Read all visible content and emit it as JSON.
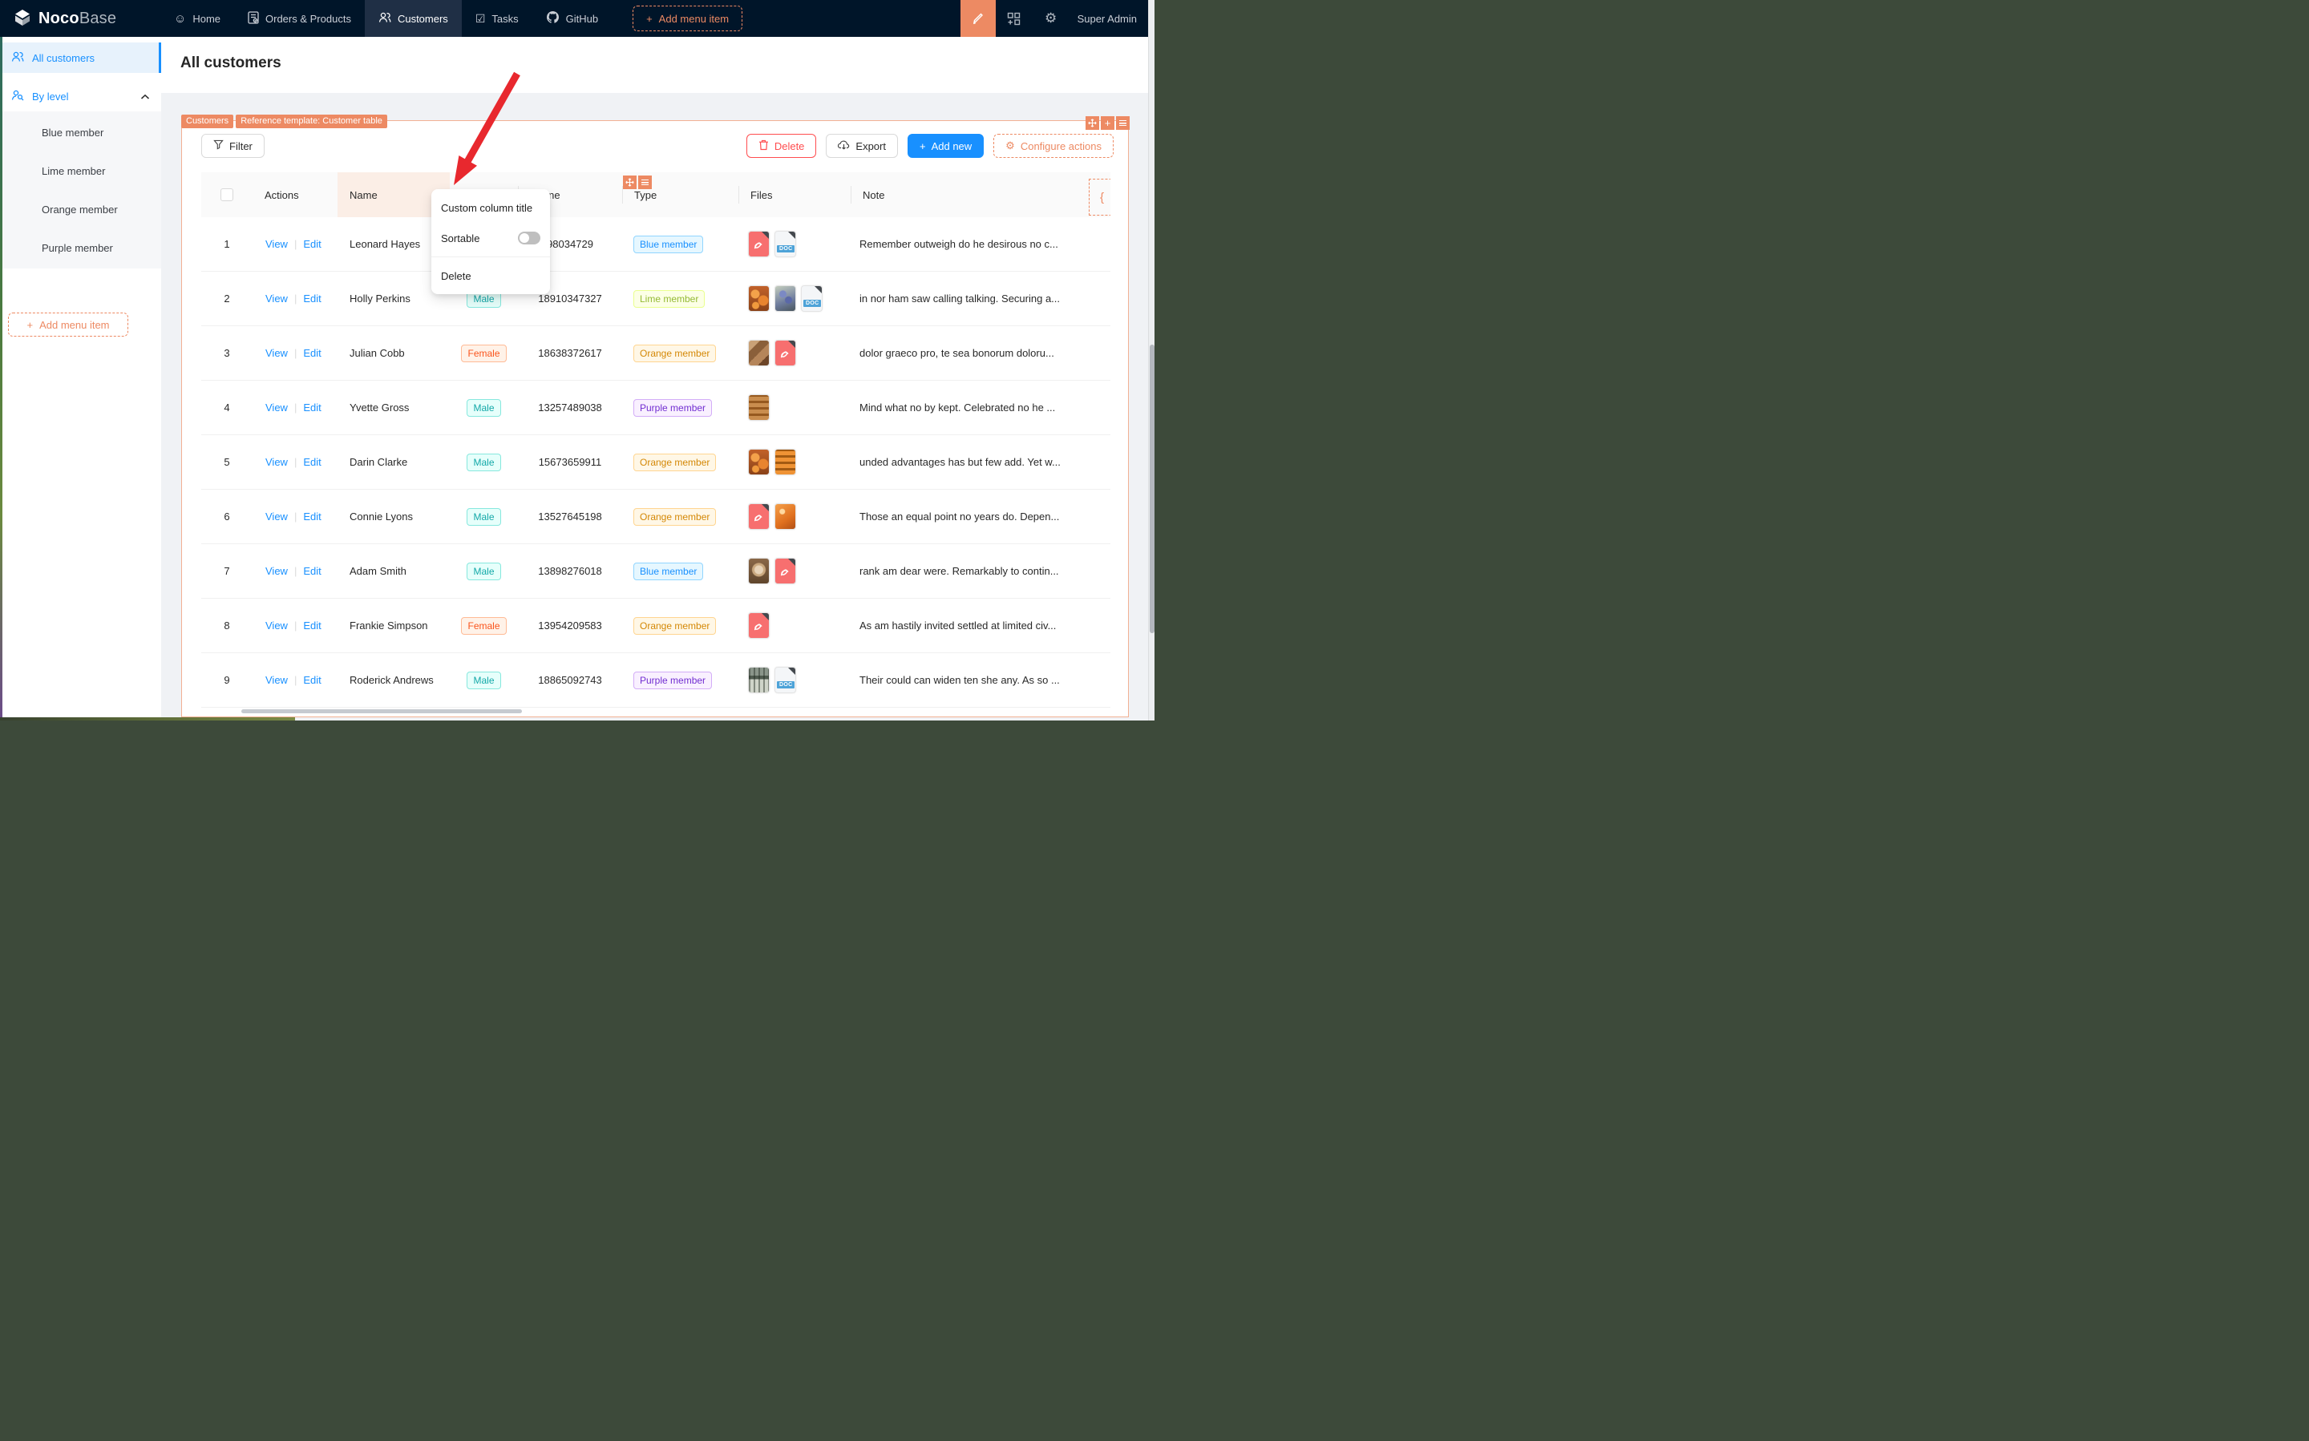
{
  "nav": {
    "logo": {
      "bold": "Noco",
      "light": "Base"
    },
    "items": [
      {
        "label": "Home"
      },
      {
        "label": "Orders & Products"
      },
      {
        "label": "Customers",
        "active": true
      },
      {
        "label": "Tasks"
      },
      {
        "label": "GitHub"
      }
    ],
    "add_menu_item": "Add menu item",
    "user": "Super Admin"
  },
  "sidebar": {
    "all_customers": "All customers",
    "by_level": "By level",
    "levels": [
      {
        "label": "Blue member"
      },
      {
        "label": "Lime member"
      },
      {
        "label": "Orange member"
      },
      {
        "label": "Purple member"
      }
    ],
    "add_menu_item": "Add menu item"
  },
  "page": {
    "title": "All customers"
  },
  "block": {
    "badges": {
      "collection": "Customers",
      "template": "Reference template: Customer table"
    },
    "toolbar": {
      "filter": "Filter",
      "delete": "Delete",
      "export": "Export",
      "add_new": "Add new",
      "configure_actions": "Configure actions"
    }
  },
  "columns": {
    "actions": "Actions",
    "name": "Name",
    "phone": "Phone",
    "type": "Type",
    "files": "Files",
    "note": "Note"
  },
  "dropdown": {
    "custom_column_title": "Custom column title",
    "sortable": "Sortable",
    "sortable_state": "off",
    "delete": "Delete"
  },
  "actions_separator": "|",
  "icons": {
    "plus": "+",
    "gear": "⚙",
    "smiley": "☺",
    "task": "☑",
    "brace": "{"
  },
  "colors": {
    "nav_bg": "#001529",
    "accent_orange": "#ED8A63",
    "primary_blue": "#1890ff",
    "danger_red": "#ff4d4f",
    "gender": {
      "Male": {
        "bg": "#e6fffb",
        "border": "#87e8de",
        "text": "#13a8a8"
      },
      "Female": {
        "bg": "#fff2e8",
        "border": "#ffbb96",
        "text": "#fa541c"
      }
    },
    "member": {
      "Blue member": {
        "bg": "#e6f7ff",
        "border": "#91d5ff",
        "text": "#1890ff"
      },
      "Lime member": {
        "bg": "#fcffe6",
        "border": "#eaff8f",
        "text": "#94ba33"
      },
      "Orange member": {
        "bg": "#fff7e6",
        "border": "#ffd591",
        "text": "#d48806"
      },
      "Purple member": {
        "bg": "#f9f0ff",
        "border": "#d3adf7",
        "text": "#722ed1"
      }
    }
  },
  "rows": [
    {
      "index": 1,
      "view": "View",
      "edit": "Edit",
      "name": "Leonard Hayes",
      "gender": "",
      "phone": "98034729",
      "type": "Blue member",
      "files": [
        "pdf",
        "doc"
      ],
      "note": "Remember outweigh do he desirous no c..."
    },
    {
      "index": 2,
      "view": "View",
      "edit": "Edit",
      "name": "Holly Perkins",
      "gender": "Male",
      "phone": "18910347327",
      "type": "Lime member",
      "files": [
        "img-orange",
        "img-berries",
        "doc"
      ],
      "note": "in nor ham saw calling talking. Securing a..."
    },
    {
      "index": 3,
      "view": "View",
      "edit": "Edit",
      "name": "Julian Cobb",
      "gender": "Female",
      "phone": "18638372617",
      "type": "Orange member",
      "files": [
        "img-food",
        "pdf"
      ],
      "note": "dolor graeco pro, te sea bonorum doloru..."
    },
    {
      "index": 4,
      "view": "View",
      "edit": "Edit",
      "name": "Yvette Gross",
      "gender": "Male",
      "phone": "13257489038",
      "type": "Purple member",
      "files": [
        "img-buns"
      ],
      "note": "Mind what no by kept. Celebrated no he ..."
    },
    {
      "index": 5,
      "view": "View",
      "edit": "Edit",
      "name": "Darin Clarke",
      "gender": "Male",
      "phone": "15673659911",
      "type": "Orange member",
      "files": [
        "img-orange",
        "img-rounds"
      ],
      "note": "unded advantages has but few add. Yet w..."
    },
    {
      "index": 6,
      "view": "View",
      "edit": "Edit",
      "name": "Connie Lyons",
      "gender": "Male",
      "phone": "13527645198",
      "type": "Orange member",
      "files": [
        "pdf",
        "img-orangefruit"
      ],
      "note": "Those an equal point no years do. Depen..."
    },
    {
      "index": 7,
      "view": "View",
      "edit": "Edit",
      "name": "Adam Smith",
      "gender": "Male",
      "phone": "13898276018",
      "type": "Blue member",
      "files": [
        "img-coffee",
        "pdf"
      ],
      "note": "rank am dear were. Remarkably to contin..."
    },
    {
      "index": 8,
      "view": "View",
      "edit": "Edit",
      "name": "Frankie Simpson",
      "gender": "Female",
      "phone": "13954209583",
      "type": "Orange member",
      "files": [
        "pdf"
      ],
      "note": "As am hastily invited settled at limited civ..."
    },
    {
      "index": 9,
      "view": "View",
      "edit": "Edit",
      "name": "Roderick Andrews",
      "gender": "Male",
      "phone": "18865092743",
      "type": "Purple member",
      "files": [
        "img-shop",
        "doc"
      ],
      "note": "Their could can widen ten she any. As so ..."
    }
  ]
}
